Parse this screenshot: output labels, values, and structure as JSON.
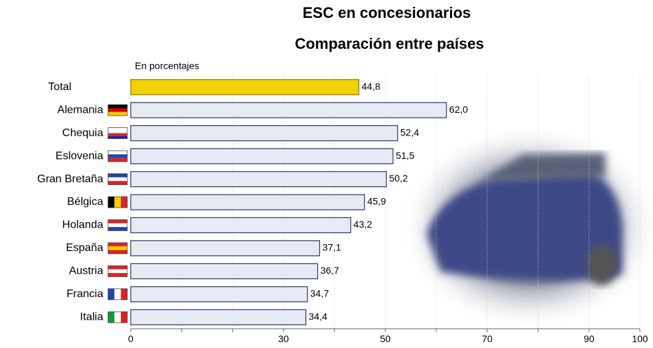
{
  "chart_data": {
    "type": "bar",
    "orientation": "horizontal",
    "title": "ESC en concesionarios",
    "subtitle": "Comparación entre países",
    "unit_label": "En porcentajes",
    "categories": [
      "Total",
      "Alemania",
      "Chequia",
      "Eslovenia",
      "Gran Bretaña",
      "Bélgica",
      "Holanda",
      "España",
      "Austria",
      "Francia",
      "Italia"
    ],
    "values": [
      44.8,
      62.0,
      52.4,
      51.5,
      50.2,
      45.9,
      43.2,
      37.1,
      36.7,
      34.7,
      34.4
    ],
    "value_labels": [
      "44,8",
      "62,0",
      "52,4",
      "51,5",
      "50,2",
      "45,9",
      "43,2",
      "37,1",
      "36,7",
      "34,7",
      "34,4"
    ],
    "colors": [
      "#f2d200",
      "#e6eaf2",
      "#e6eaf2",
      "#e6eaf2",
      "#e6eaf2",
      "#e6eaf2",
      "#e6eaf2",
      "#e6eaf2",
      "#e6eaf2",
      "#e6eaf2",
      "#e6eaf2"
    ],
    "xlim": [
      0,
      100
    ],
    "xticks": [
      0,
      30,
      50,
      70,
      90,
      100
    ],
    "minor_xticks": [
      10,
      20,
      40,
      60,
      80
    ],
    "grid": true
  }
}
